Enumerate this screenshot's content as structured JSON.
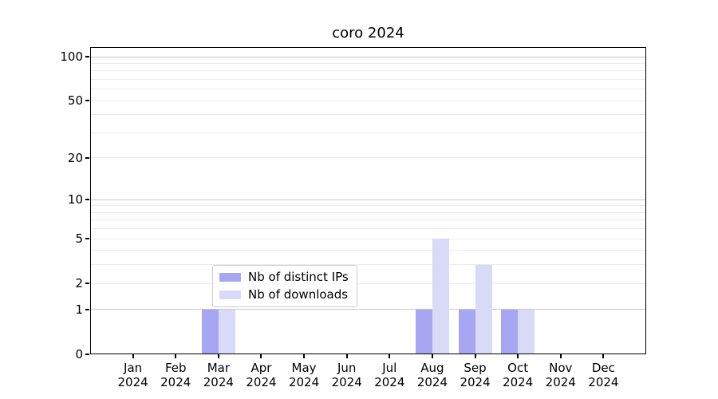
{
  "figure": {
    "background": "#ffffff",
    "text_color": "#000000"
  },
  "chart_data": {
    "type": "bar",
    "title": "coro 2024",
    "categories": [
      "Jan 2024",
      "Feb 2024",
      "Mar 2024",
      "Apr 2024",
      "May 2024",
      "Jun 2024",
      "Jul 2024",
      "Aug 2024",
      "Sep 2024",
      "Oct 2024",
      "Nov 2024",
      "Dec 2024"
    ],
    "series": [
      {
        "name": "Nb of distinct IPs",
        "color": "#a6a6f2",
        "values": [
          0,
          0,
          1,
          0,
          0,
          0,
          0,
          1,
          1,
          1,
          0,
          0
        ]
      },
      {
        "name": "Nb of downloads",
        "color": "#d9d9f8",
        "values": [
          0,
          0,
          1,
          0,
          0,
          0,
          0,
          5,
          3,
          1,
          0,
          0
        ]
      }
    ],
    "xlabel": "",
    "ylabel": "",
    "y_scale": "log1p",
    "ylim": [
      0,
      117
    ],
    "y_tick_values": [
      100,
      50,
      20,
      10,
      5,
      2,
      1,
      0
    ],
    "y_major_gridlines": [
      1,
      10,
      100
    ],
    "y_minor_gridlines": [
      2,
      3,
      4,
      5,
      6,
      7,
      8,
      9,
      20,
      30,
      40,
      50,
      60,
      70,
      80,
      90
    ],
    "grid": true,
    "legend_position": "lower center inside",
    "gridline_minor_color": "#ebebeb",
    "gridline_major_color": "#c9c9c9"
  }
}
